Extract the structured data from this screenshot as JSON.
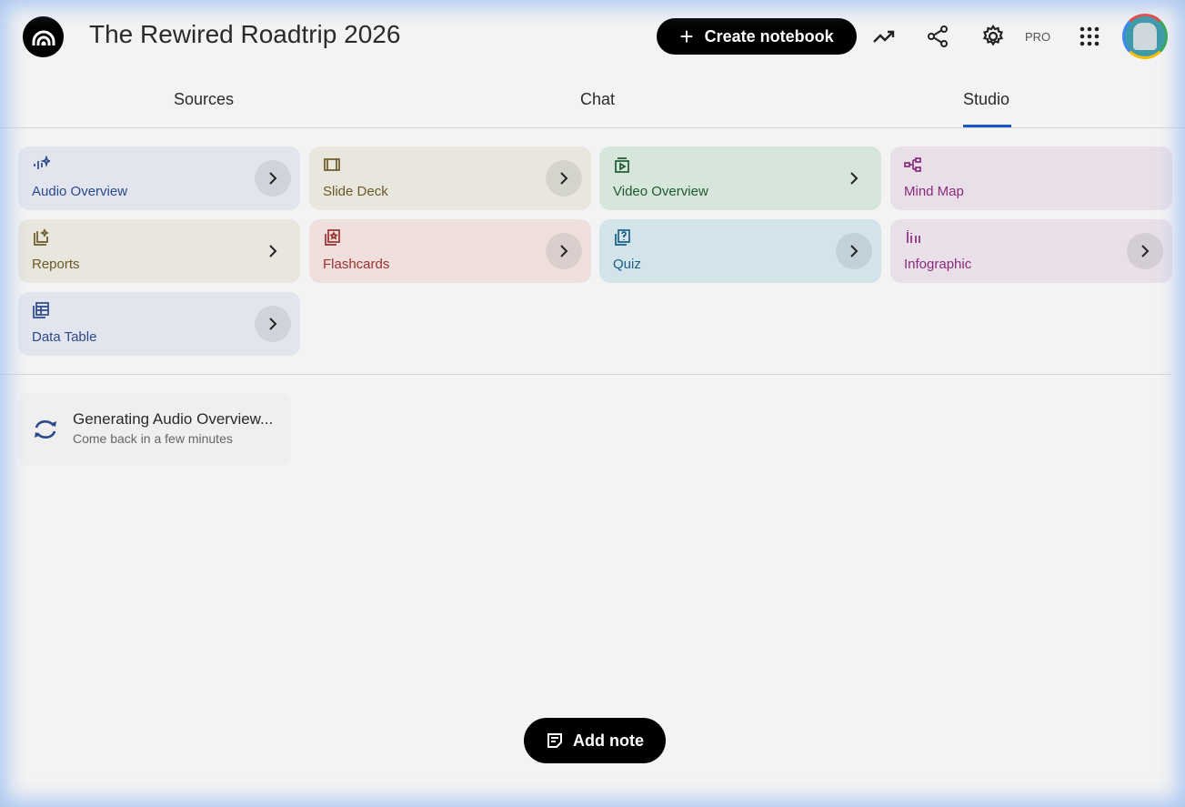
{
  "header": {
    "title": "The Rewired Roadtrip 2026",
    "create_label": "Create notebook",
    "pro_badge": "PRO"
  },
  "tabs": [
    {
      "label": "Sources"
    },
    {
      "label": "Chat"
    },
    {
      "label": "Studio",
      "active": true
    }
  ],
  "studio": {
    "tools": [
      {
        "label": "Audio Overview",
        "icon": "audio-waveform-sparkle-icon",
        "bg": "#e2e5ee",
        "color": "#2b4a8b"
      },
      {
        "label": "Slide Deck",
        "icon": "slides-icon",
        "bg": "#e8e6dd",
        "color": "#6b5a28"
      },
      {
        "label": "Video Overview",
        "icon": "video-icon",
        "bg": "#d7e6da",
        "color": "#1e5a30"
      },
      {
        "label": "Mind Map",
        "icon": "mind-map-icon",
        "bg": "#e8dfe8",
        "color": "#8b2b7c"
      },
      {
        "label": "Reports",
        "icon": "reports-icon",
        "bg": "#e8e6dd",
        "color": "#6b5a28"
      },
      {
        "label": "Flashcards",
        "icon": "flashcards-icon",
        "bg": "#eedfdd",
        "color": "#9b3131"
      },
      {
        "label": "Quiz",
        "icon": "quiz-icon",
        "bg": "#d3e3ea",
        "color": "#1c5f87"
      },
      {
        "label": "Infographic",
        "icon": "infographic-icon",
        "bg": "#e8dfe8",
        "color": "#8b2b7c"
      },
      {
        "label": "Data Table",
        "icon": "data-table-icon",
        "bg": "#e2e5ee",
        "color": "#2b4a8b"
      }
    ]
  },
  "generating": {
    "title": "Generating Audio Overview...",
    "subtitle": "Come back in a few minutes"
  },
  "add_note_label": "Add note"
}
